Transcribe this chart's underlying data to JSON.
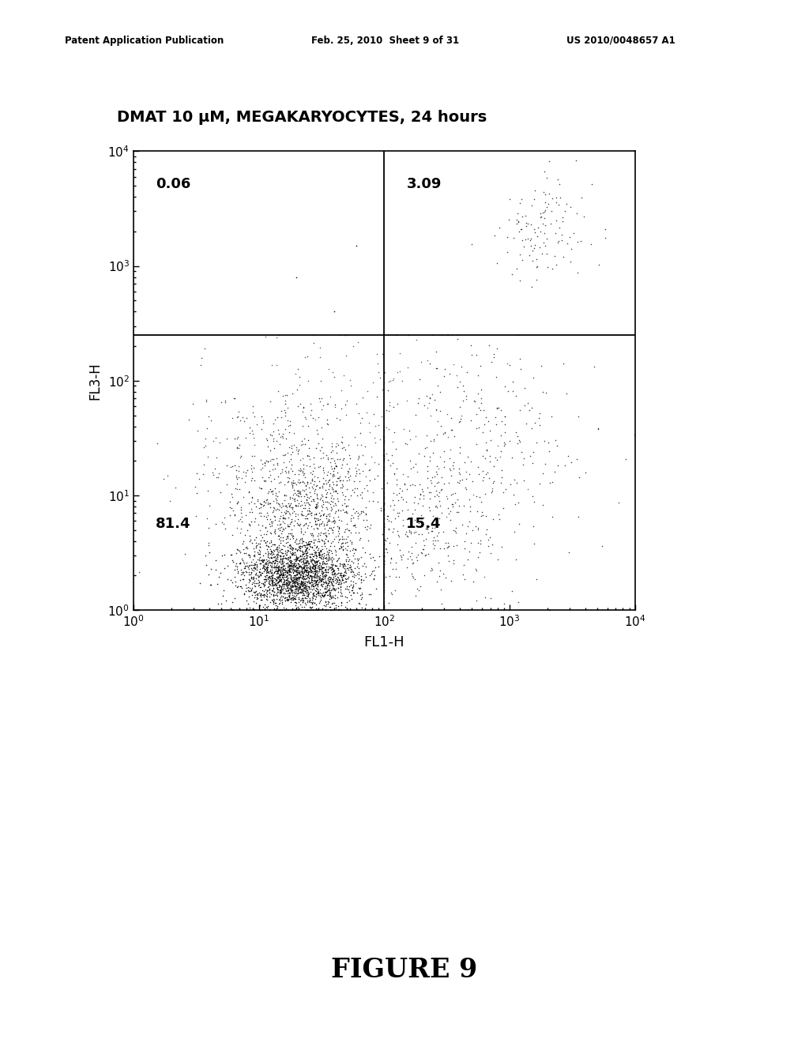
{
  "title": "DMAT 10 μM, MEGAKARYOCYTES, 24 hours",
  "xlabel": "FL1-H",
  "ylabel": "FL3-H",
  "xlim": [
    1.0,
    10000.0
  ],
  "ylim": [
    1.0,
    10000.0
  ],
  "quadrant_x": 100.0,
  "quadrant_y": 250.0,
  "labels": {
    "UL": "0.06",
    "UR": "3.09",
    "LL": "81.4",
    "LR": "15.4"
  },
  "background_color": "#ffffff",
  "dot_color": "#000000",
  "header_left": "Patent Application Publication",
  "header_mid": "Feb. 25, 2010  Sheet 9 of 31",
  "header_right": "US 2010/0048657 A1",
  "figure_label": "FIGURE 9",
  "seed": 42,
  "n_total": 4000
}
